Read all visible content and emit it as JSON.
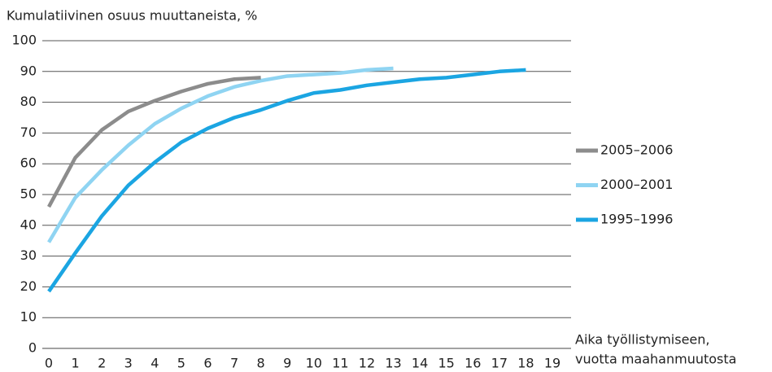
{
  "chart_data": {
    "type": "line",
    "title": "Kumulatiivinen osuus muuttaneista, %",
    "xlabel": [
      "Aika työllistymiseen,",
      "vuotta maahanmuutosta"
    ],
    "xlim": [
      0,
      19
    ],
    "xticks": [
      0,
      1,
      2,
      3,
      4,
      5,
      6,
      7,
      8,
      9,
      10,
      11,
      12,
      13,
      14,
      15,
      16,
      17,
      18,
      19
    ],
    "ylim": [
      0,
      100
    ],
    "yticks": [
      0,
      10,
      20,
      30,
      40,
      50,
      60,
      70,
      80,
      90,
      100
    ],
    "grid": true,
    "legend": "right",
    "series": [
      {
        "name": "2005–2006",
        "color": "#8c8c8c",
        "x": [
          0,
          1,
          2,
          3,
          4,
          5,
          6,
          7,
          8
        ],
        "values": [
          46,
          62,
          71,
          77,
          80.5,
          83.5,
          86,
          87.5,
          88
        ]
      },
      {
        "name": "2000–2001",
        "color": "#8fd4f2",
        "x": [
          0,
          1,
          2,
          3,
          4,
          5,
          6,
          7,
          8,
          9,
          10,
          11,
          12,
          13
        ],
        "values": [
          34.5,
          49,
          58,
          66,
          73,
          78,
          82,
          85,
          87,
          88.5,
          89,
          89.5,
          90.5,
          91
        ]
      },
      {
        "name": "1995–1996",
        "color": "#1ba5e2",
        "x": [
          0,
          1,
          2,
          3,
          4,
          5,
          6,
          7,
          8,
          9,
          10,
          11,
          12,
          13,
          14,
          15,
          16,
          17,
          18
        ],
        "values": [
          18.5,
          31,
          43,
          53,
          60.5,
          67,
          71.5,
          75,
          77.5,
          80.5,
          83,
          84,
          85.5,
          86.5,
          87.5,
          88,
          89,
          90,
          90.5
        ]
      }
    ]
  }
}
